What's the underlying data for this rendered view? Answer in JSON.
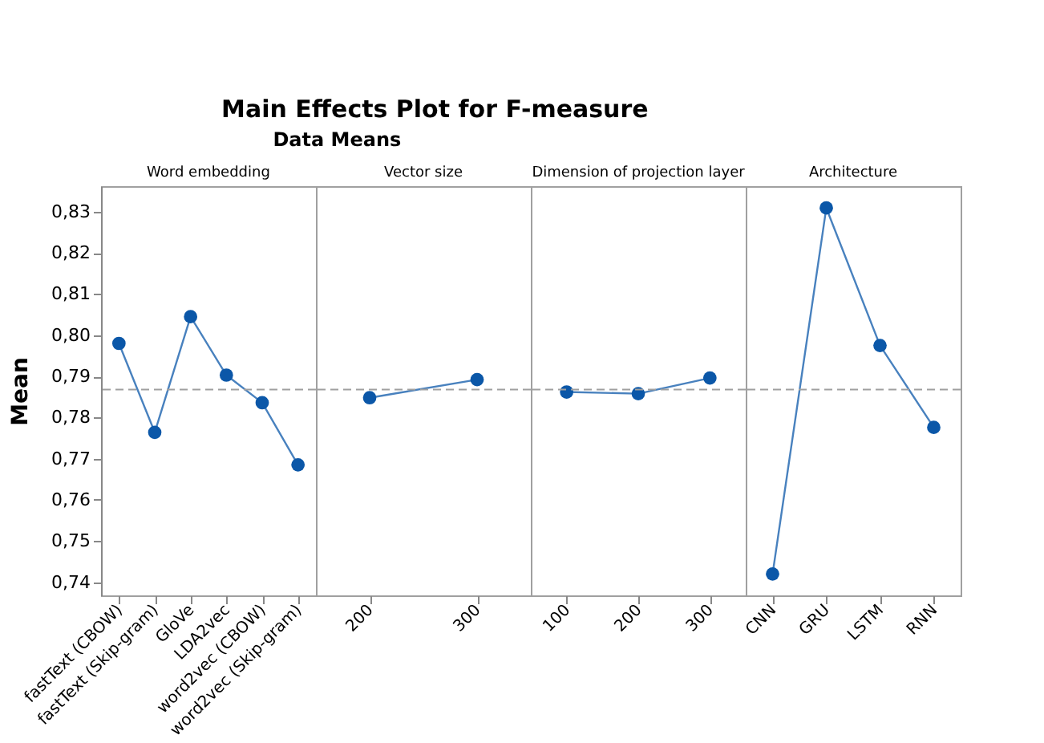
{
  "chart_data": [
    {
      "type": "line",
      "title": "Main Effects Plot for F-measure",
      "subtitle": "Data Means",
      "ylabel": "Mean",
      "annotations": [
        "Word embedding"
      ],
      "categories": [
        "fastText (CBOW)",
        "fastText (Skip-gram)",
        "GloVe",
        "LDA2vec",
        "word2vec (CBOW)",
        "word2vec (Skip-gram)"
      ],
      "series": [
        {
          "color": "#0b57a8",
          "values": [
            0.798,
            0.7764,
            0.8045,
            0.7903,
            0.7836,
            0.7685
          ]
        }
      ],
      "ylim": [
        0.7368,
        0.8362
      ],
      "yticks": [
        {
          "value": 0.74,
          "label": "0,74"
        },
        {
          "value": 0.75,
          "label": "0,75"
        },
        {
          "value": 0.76,
          "label": "0,76"
        },
        {
          "value": 0.77,
          "label": "0,77"
        },
        {
          "value": 0.78,
          "label": "0,78"
        },
        {
          "value": 0.79,
          "label": "0,79"
        },
        {
          "value": 0.8,
          "label": "0,80"
        },
        {
          "value": 0.81,
          "label": "0,81"
        },
        {
          "value": 0.82,
          "label": "0,82"
        },
        {
          "value": 0.83,
          "label": "0,83"
        }
      ],
      "ref_lines": [
        {
          "axis": "y",
          "value": 0.7868,
          "color": "#a0a0a0",
          "line_style": "dashed"
        }
      ],
      "marker": "circle",
      "grid": false
    },
    {
      "type": "line",
      "annotations": [
        "Vector size"
      ],
      "categories": [
        "200",
        "300"
      ],
      "series": [
        {
          "color": "#0b57a8",
          "values": [
            0.7848,
            0.7892
          ]
        }
      ],
      "ylim": [
        0.7368,
        0.8362
      ],
      "tick_labels": "x",
      "ref_lines": [
        {
          "axis": "y",
          "value": 0.7868,
          "color": "#a0a0a0",
          "line_style": "dashed"
        }
      ],
      "marker": "circle",
      "grid": false
    },
    {
      "type": "line",
      "annotations": [
        "Dimension of projection layer"
      ],
      "categories": [
        "100",
        "200",
        "300"
      ],
      "series": [
        {
          "color": "#0b57a8",
          "values": [
            0.7862,
            0.7858,
            0.7896
          ]
        }
      ],
      "ylim": [
        0.7368,
        0.8362
      ],
      "tick_labels": "x",
      "ref_lines": [
        {
          "axis": "y",
          "value": 0.7868,
          "color": "#a0a0a0",
          "line_style": "dashed"
        }
      ],
      "marker": "circle",
      "grid": false
    },
    {
      "type": "line",
      "annotations": [
        "Architecture"
      ],
      "categories": [
        "CNN",
        "GRU",
        "LSTM",
        "RNN"
      ],
      "series": [
        {
          "color": "#0b57a8",
          "values": [
            0.742,
            0.8309,
            0.7975,
            0.7776
          ]
        }
      ],
      "ylim": [
        0.7368,
        0.8362
      ],
      "tick_labels": "x",
      "ref_lines": [
        {
          "axis": "y",
          "value": 0.7868,
          "color": "#a0a0a0",
          "line_style": "dashed"
        }
      ],
      "marker": "circle",
      "grid": false
    }
  ]
}
